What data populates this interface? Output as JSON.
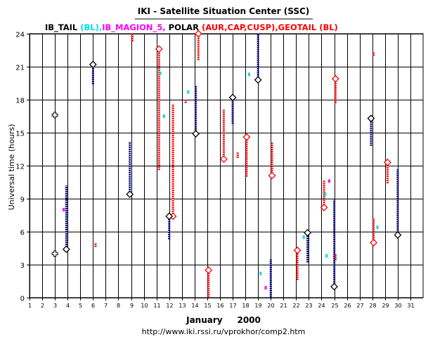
{
  "chart_data": {
    "type": "scatter",
    "title": "IKI - Satellite Situation Center (SSC)",
    "legend": [
      {
        "label": "IB_TAIL",
        "color": "#ff0000"
      },
      {
        "label": " (BL),",
        "color": "#000000"
      },
      {
        "label": "IB_MAGION_5,",
        "color": "#00e0e0"
      },
      {
        "label": " POLAR",
        "color": "#ff00ff"
      },
      {
        "label": " (AUR,CAP,CUSP),GEOTAIL (BL)",
        "color": "#000000"
      }
    ],
    "ylabel": "Universal time (hours)",
    "xlabel": "January     2000",
    "footer": "http://www.iki.rssi.ru/vprokhor/comp2.htm",
    "xlim": [
      1,
      32
    ],
    "ylim": [
      0,
      24
    ],
    "x_ticks": [
      1,
      2,
      3,
      4,
      5,
      6,
      7,
      8,
      9,
      10,
      11,
      12,
      13,
      14,
      15,
      16,
      17,
      18,
      19,
      20,
      21,
      22,
      23,
      24,
      25,
      26,
      27,
      28,
      29,
      30,
      31
    ],
    "y_ticks": [
      0,
      3,
      6,
      9,
      12,
      15,
      18,
      21,
      24
    ],
    "series": [
      {
        "name": "IB_TAIL",
        "color": "#ff0000",
        "intervals": [
          {
            "x": 6.2,
            "y0": 4.6,
            "y1": 5.0
          },
          {
            "x": 9.1,
            "y0": 23.3,
            "y1": 24.0
          },
          {
            "x": 11.2,
            "y0": 11.6,
            "y1": 22.6
          },
          {
            "x": 12.3,
            "y0": 7.4,
            "y1": 17.6
          },
          {
            "x": 13.3,
            "y0": 17.7,
            "y1": 18.0
          },
          {
            "x": 14.3,
            "y0": 21.6,
            "y1": 24.0
          },
          {
            "x": 15.1,
            "y0": 0.0,
            "y1": 2.5
          },
          {
            "x": 16.3,
            "y0": 12.6,
            "y1": 17.1
          },
          {
            "x": 17.4,
            "y0": 12.7,
            "y1": 13.2
          },
          {
            "x": 18.1,
            "y0": 11.0,
            "y1": 14.6
          },
          {
            "x": 20.1,
            "y0": 11.1,
            "y1": 14.1
          },
          {
            "x": 22.1,
            "y0": 1.6,
            "y1": 4.3
          },
          {
            "x": 24.2,
            "y0": 8.2,
            "y1": 10.7
          },
          {
            "x": 25.1,
            "y0": 17.7,
            "y1": 19.9
          },
          {
            "x": 25.1,
            "y0": 3.4,
            "y1": 4.0
          },
          {
            "x": 28.1,
            "y0": 5.0,
            "y1": 7.2
          },
          {
            "x": 28.1,
            "y0": 22.0,
            "y1": 22.3
          },
          {
            "x": 29.2,
            "y0": 10.4,
            "y1": 12.3
          }
        ],
        "markers": [
          {
            "x": 11.2,
            "y": 22.6
          },
          {
            "x": 12.3,
            "y": 7.4
          },
          {
            "x": 14.3,
            "y": 24.0
          },
          {
            "x": 15.1,
            "y": 2.5
          },
          {
            "x": 16.3,
            "y": 12.6
          },
          {
            "x": 18.1,
            "y": 14.6
          },
          {
            "x": 20.1,
            "y": 11.1
          },
          {
            "x": 22.1,
            "y": 4.3
          },
          {
            "x": 24.2,
            "y": 8.2
          },
          {
            "x": 25.1,
            "y": 19.9
          },
          {
            "x": 28.1,
            "y": 5.0
          },
          {
            "x": 29.2,
            "y": 12.3
          }
        ]
      },
      {
        "name": "IB_MAGION_5",
        "color": "#00e0e0",
        "points": [
          {
            "x": 11.3,
            "y": 20.4
          },
          {
            "x": 11.6,
            "y": 16.5
          },
          {
            "x": 13.5,
            "y": 18.7
          },
          {
            "x": 18.3,
            "y": 20.3
          },
          {
            "x": 19.2,
            "y": 2.2
          },
          {
            "x": 22.6,
            "y": 5.5
          },
          {
            "x": 24.3,
            "y": 9.4
          },
          {
            "x": 24.4,
            "y": 3.8
          },
          {
            "x": 28.4,
            "y": 6.4
          }
        ]
      },
      {
        "name": "POLAR",
        "color": "#ff00ff",
        "points": [
          {
            "x": 3.7,
            "y": 8.0
          },
          {
            "x": 24.6,
            "y": 10.6
          },
          {
            "x": 19.6,
            "y": 0.9
          }
        ]
      },
      {
        "name": "GEOTAIL",
        "color": "#000080",
        "intervals": [
          {
            "x": 3.9,
            "y0": 4.4,
            "y1": 10.2
          },
          {
            "x": 6.0,
            "y0": 19.4,
            "y1": 21.2
          },
          {
            "x": 8.9,
            "y0": 9.4,
            "y1": 14.2
          },
          {
            "x": 12.0,
            "y0": 5.3,
            "y1": 7.4
          },
          {
            "x": 14.1,
            "y0": 14.9,
            "y1": 19.3
          },
          {
            "x": 17.0,
            "y0": 15.8,
            "y1": 18.2
          },
          {
            "x": 19.0,
            "y0": 19.8,
            "y1": 24.0
          },
          {
            "x": 20.0,
            "y0": 0.0,
            "y1": 3.5
          },
          {
            "x": 22.9,
            "y0": 3.2,
            "y1": 5.9
          },
          {
            "x": 25.0,
            "y0": 1.0,
            "y1": 8.9
          },
          {
            "x": 27.9,
            "y0": 13.8,
            "y1": 16.3
          },
          {
            "x": 30.0,
            "y0": 5.7,
            "y1": 11.7
          }
        ],
        "markers": [
          {
            "x": 3.9,
            "y": 4.4
          },
          {
            "x": 6.0,
            "y": 21.2
          },
          {
            "x": 8.9,
            "y": 9.4
          },
          {
            "x": 12.0,
            "y": 7.4
          },
          {
            "x": 14.1,
            "y": 14.9
          },
          {
            "x": 17.0,
            "y": 18.2
          },
          {
            "x": 19.0,
            "y": 19.8
          },
          {
            "x": 22.9,
            "y": 5.9
          },
          {
            "x": 25.0,
            "y": 1.0
          },
          {
            "x": 27.9,
            "y": 16.3
          },
          {
            "x": 30.0,
            "y": 5.7
          }
        ],
        "cross_markers": [
          {
            "x": 3.0,
            "y": 16.6
          },
          {
            "x": 3.0,
            "y": 4.0
          }
        ]
      }
    ]
  }
}
